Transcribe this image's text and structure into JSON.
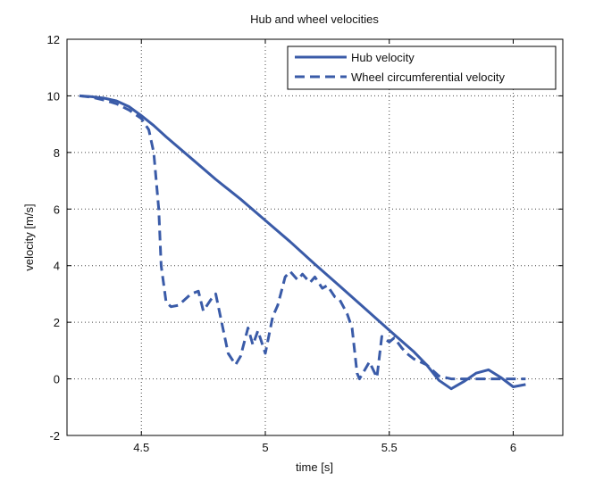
{
  "chart_data": {
    "type": "line",
    "title": "Hub and wheel velocities",
    "xlabel": "time [s]",
    "ylabel": "velocity [m/s]",
    "xlim": [
      4.2,
      6.2
    ],
    "ylim": [
      -2,
      12
    ],
    "xticks": [
      4.5,
      5,
      5.5,
      6
    ],
    "xtick_labels": [
      "4.5",
      "5",
      "5.5",
      "6"
    ],
    "yticks": [
      -2,
      0,
      2,
      4,
      6,
      8,
      10,
      12
    ],
    "ytick_labels": [
      "-2",
      "0",
      "2",
      "4",
      "6",
      "8",
      "10",
      "12"
    ],
    "grid": true,
    "legend_position": "top-right",
    "line_color": "#3a5ba8",
    "series": [
      {
        "name": "Hub velocity",
        "style": "solid",
        "x": [
          4.25,
          4.3,
          4.35,
          4.4,
          4.45,
          4.5,
          4.55,
          4.6,
          4.7,
          4.8,
          4.9,
          5.0,
          5.1,
          5.2,
          5.3,
          5.4,
          5.5,
          5.6,
          5.65,
          5.7,
          5.75,
          5.8,
          5.85,
          5.9,
          5.95,
          6.0,
          6.05
        ],
        "y": [
          10.0,
          9.97,
          9.92,
          9.82,
          9.62,
          9.3,
          8.95,
          8.55,
          7.8,
          7.05,
          6.35,
          5.6,
          4.85,
          4.05,
          3.28,
          2.5,
          1.72,
          0.95,
          0.5,
          -0.05,
          -0.35,
          -0.1,
          0.2,
          0.32,
          0.05,
          -0.28,
          -0.2
        ]
      },
      {
        "name": "Wheel circumferential velocity",
        "style": "dashed",
        "x": [
          4.25,
          4.3,
          4.35,
          4.4,
          4.45,
          4.5,
          4.53,
          4.55,
          4.57,
          4.58,
          4.6,
          4.62,
          4.65,
          4.7,
          4.73,
          4.75,
          4.78,
          4.8,
          4.85,
          4.88,
          4.9,
          4.93,
          4.95,
          4.97,
          5.0,
          5.03,
          5.05,
          5.08,
          5.1,
          5.13,
          5.15,
          5.18,
          5.2,
          5.23,
          5.25,
          5.28,
          5.3,
          5.33,
          5.35,
          5.37,
          5.38,
          5.4,
          5.42,
          5.45,
          5.47,
          5.5,
          5.52,
          5.55,
          5.57,
          5.6,
          5.65,
          5.7,
          5.75,
          5.8,
          5.9,
          6.0,
          6.05
        ],
        "y": [
          10.0,
          9.95,
          9.85,
          9.72,
          9.5,
          9.2,
          8.8,
          8.0,
          6.0,
          4.0,
          2.7,
          2.55,
          2.6,
          3.0,
          3.1,
          2.4,
          2.8,
          3.0,
          0.9,
          0.5,
          0.8,
          1.8,
          1.2,
          1.7,
          0.9,
          2.2,
          2.6,
          3.6,
          3.8,
          3.5,
          3.7,
          3.4,
          3.6,
          3.2,
          3.3,
          2.9,
          2.8,
          2.3,
          1.8,
          0.2,
          0.0,
          0.3,
          0.6,
          0.05,
          1.5,
          1.3,
          1.45,
          1.1,
          0.9,
          0.7,
          0.5,
          0.1,
          0.0,
          0.0,
          0.0,
          0.0,
          0.0
        ]
      }
    ]
  }
}
